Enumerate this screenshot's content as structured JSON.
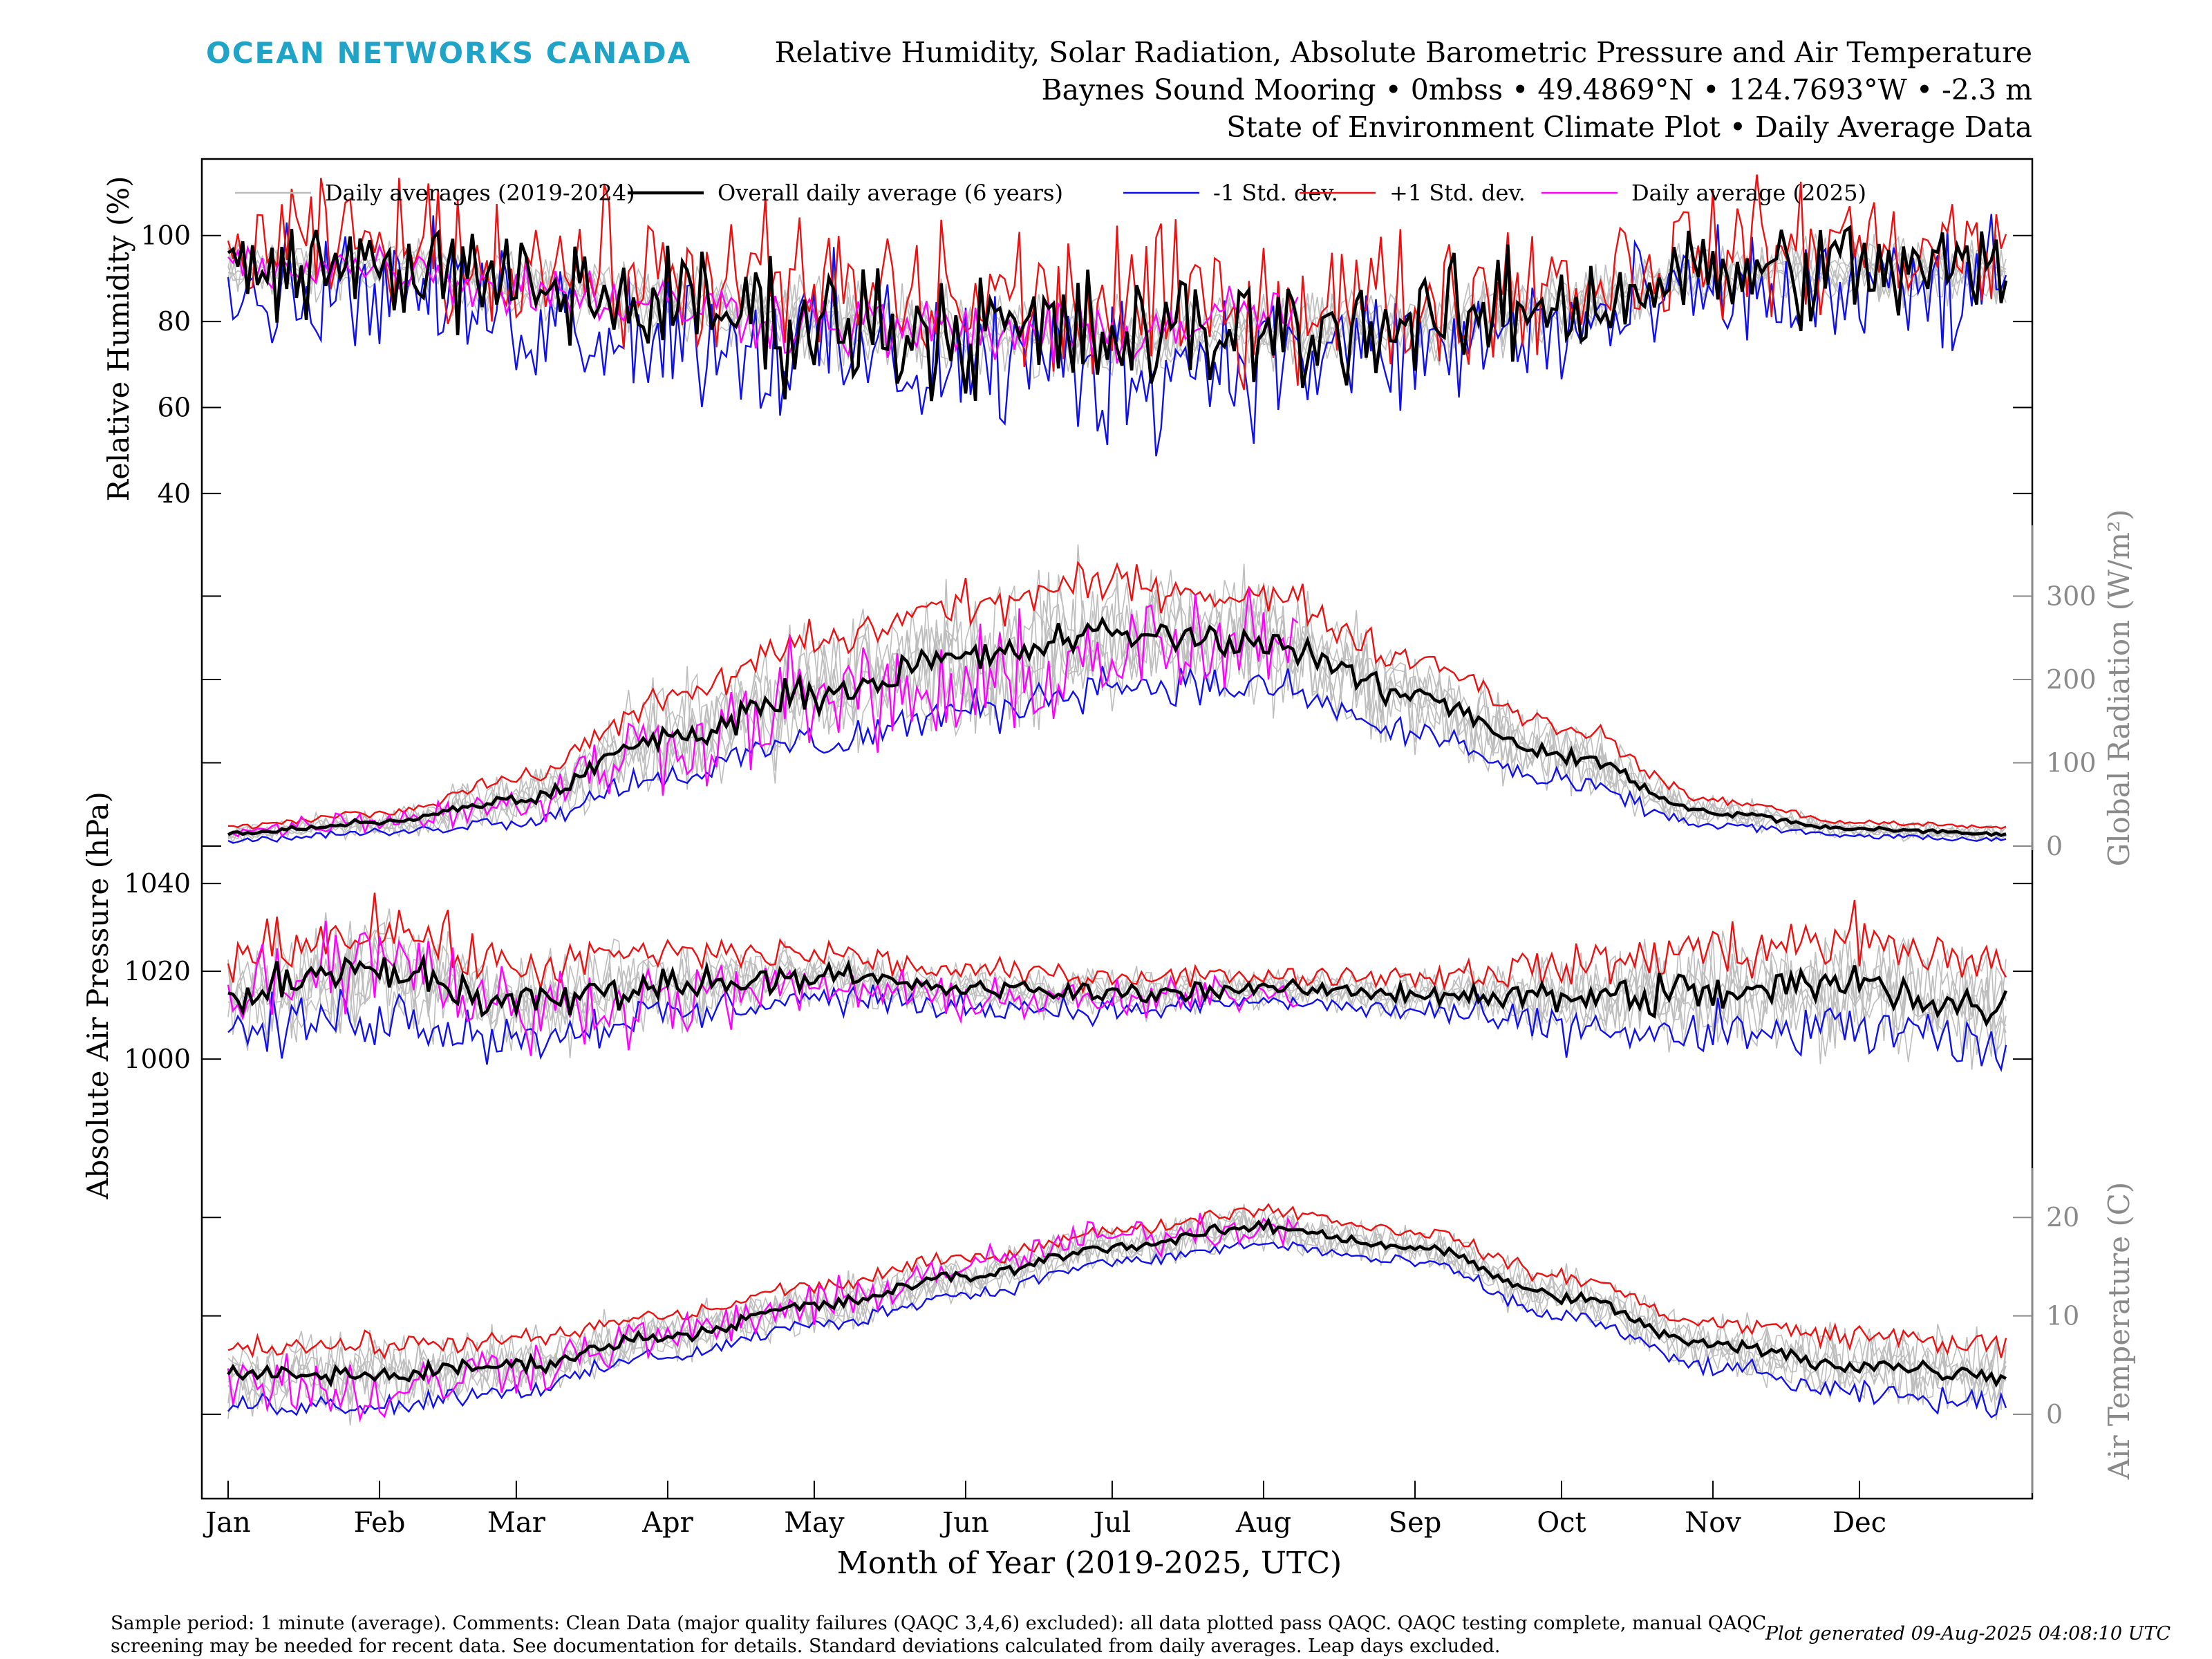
{
  "logo_text": "OCEAN NETWORKS CANADA",
  "title_lines": [
    "Relative Humidity, Solar Radiation, Absolute Barometric Pressure and Air Temperature",
    "Baynes Sound Mooring • 0mbss • 49.4869°N • 124.7693°W • -2.3 m",
    "State of Environment Climate Plot • Daily Average Data"
  ],
  "footer": {
    "left": "Sample period: 1 minute (average). Comments: Clean Data (major quality failures (QAQC 3,4,6) excluded): all data plotted pass QAQC. QAQC testing complete, manual QAQC screening may be needed for recent data. See documentation for details. Standard deviations calculated from daily averages. Leap days excluded.",
    "right": "Plot generated 09-Aug-2025 04:08:10 UTC"
  },
  "colors": {
    "historical": "#bdbdbd",
    "overall": "#000000",
    "minus_std": "#1010ee",
    "plus_std": "#ee1010",
    "year_2025": "#ff00ff",
    "right_axis": "#8a8a8a"
  },
  "chart_data": {
    "type": "line",
    "xlabel": "Month of Year (2019-2025, UTC)",
    "x_ticks": [
      "Jan",
      "Feb",
      "Mar",
      "Apr",
      "May",
      "Jun",
      "Jul",
      "Aug",
      "Sep",
      "Oct",
      "Nov",
      "Dec"
    ],
    "x_tick_days": [
      1,
      32,
      60,
      91,
      121,
      152,
      182,
      213,
      244,
      274,
      305,
      335
    ],
    "xlim": [
      1,
      365
    ],
    "legend": {
      "placement": "top",
      "entries": [
        "Daily averages (2019-2024)",
        "Overall daily average (6 years)",
        "-1 Std. dev.",
        "+1 Std. dev.",
        "Daily average (2025)"
      ]
    },
    "grid": false,
    "panels": [
      {
        "key": "rh",
        "ylabel": "Relative Humidity (%)",
        "axis_side": "left",
        "ylim": [
          35,
          117
        ],
        "ticks": [
          40,
          60,
          80,
          100
        ],
        "control_days": [
          1,
          32,
          60,
          91,
          121,
          152,
          182,
          213,
          244,
          274,
          305,
          335,
          365
        ],
        "mean": [
          92,
          93,
          88,
          84,
          80,
          78,
          76,
          78,
          79,
          84,
          91,
          92,
          92
        ],
        "std": [
          5,
          5,
          6,
          6,
          7,
          7,
          7,
          6,
          6,
          6,
          5,
          6,
          5
        ],
        "y2025_mean": [
          93,
          93,
          88,
          84,
          80,
          77,
          77,
          82
        ],
        "y2025_end_day": 220,
        "noise": 2.4
      },
      {
        "key": "rad",
        "ylabel": "Global Radiation (W/m²)",
        "axis_side": "right",
        "ylim": [
          -5,
          385
        ],
        "ticks": [
          0,
          100,
          200,
          300
        ],
        "control_days": [
          1,
          32,
          60,
          91,
          121,
          152,
          182,
          213,
          244,
          274,
          305,
          335,
          365
        ],
        "mean": [
          15,
          28,
          55,
          130,
          185,
          225,
          255,
          245,
          180,
          110,
          40,
          20,
          15
        ],
        "std": [
          8,
          12,
          25,
          45,
          60,
          65,
          60,
          55,
          45,
          35,
          15,
          8,
          8
        ],
        "y2025_mean": [
          18,
          32,
          52,
          125,
          175,
          180,
          230,
          235
        ],
        "y2025_end_day": 220,
        "noise": 0.35
      },
      {
        "key": "press",
        "ylabel": "Absolute Air Pressure (hPa)",
        "axis_side": "left",
        "ylim": [
          983,
          1046
        ],
        "ticks": [
          1000,
          1020,
          1040
        ],
        "control_days": [
          1,
          32,
          60,
          91,
          121,
          152,
          182,
          213,
          244,
          274,
          305,
          335,
          365
        ],
        "mean": [
          1015,
          1020,
          1013,
          1017,
          1019,
          1016,
          1015,
          1016,
          1015,
          1014,
          1015,
          1017,
          1011
        ],
        "std": [
          9,
          10,
          8,
          7,
          5,
          4,
          4,
          3,
          4,
          7,
          10,
          10,
          10
        ],
        "y2025_mean": [
          1017,
          1025,
          1011,
          1014,
          1016,
          1014,
          1013,
          1015
        ],
        "y2025_end_day": 220,
        "noise": 0.6
      },
      {
        "key": "temp",
        "ylabel": "Air Temperature (C)",
        "axis_side": "right",
        "ylim": [
          -8,
          25
        ],
        "ticks": [
          0,
          10,
          20
        ],
        "control_days": [
          1,
          32,
          60,
          91,
          121,
          152,
          182,
          213,
          244,
          274,
          305,
          335,
          365
        ],
        "mean": [
          4,
          4,
          5,
          8,
          11,
          14,
          17,
          19,
          17,
          12,
          7,
          5,
          4
        ],
        "std": [
          3,
          3,
          2.5,
          2,
          2,
          1.8,
          1.6,
          1.8,
          1.6,
          2,
          2.2,
          3,
          3
        ],
        "y2025_mean": [
          4,
          2,
          5,
          8,
          11,
          15,
          18,
          19
        ],
        "y2025_end_day": 220,
        "noise": 0.35
      }
    ]
  }
}
